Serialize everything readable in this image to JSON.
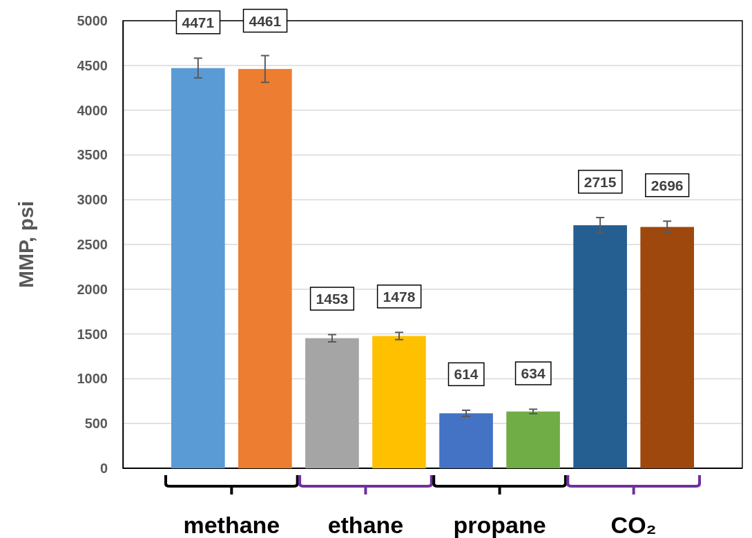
{
  "chart_data": {
    "type": "bar",
    "ylabel": "MMP, psi",
    "categories": [
      null,
      null,
      null,
      null,
      null,
      null,
      null,
      null
    ],
    "values": [
      4471,
      4461,
      1453,
      1478,
      614,
      634,
      2715,
      2696
    ],
    "errors": [
      110,
      150,
      40,
      40,
      35,
      25,
      85,
      65
    ],
    "colors": [
      "#5b9bd5",
      "#ed7d31",
      "#a5a5a5",
      "#ffc000",
      "#4472c4",
      "#70ad47",
      "#255e91",
      "#9e480e"
    ],
    "ylim": [
      0,
      5000
    ],
    "yticks": [
      0,
      500,
      1000,
      1500,
      2000,
      2500,
      3000,
      3500,
      4000,
      4500,
      5000
    ],
    "grid": "y",
    "data_labels": true,
    "annotations": [
      "methane",
      "ethane",
      "propane",
      "CO₂"
    ]
  }
}
